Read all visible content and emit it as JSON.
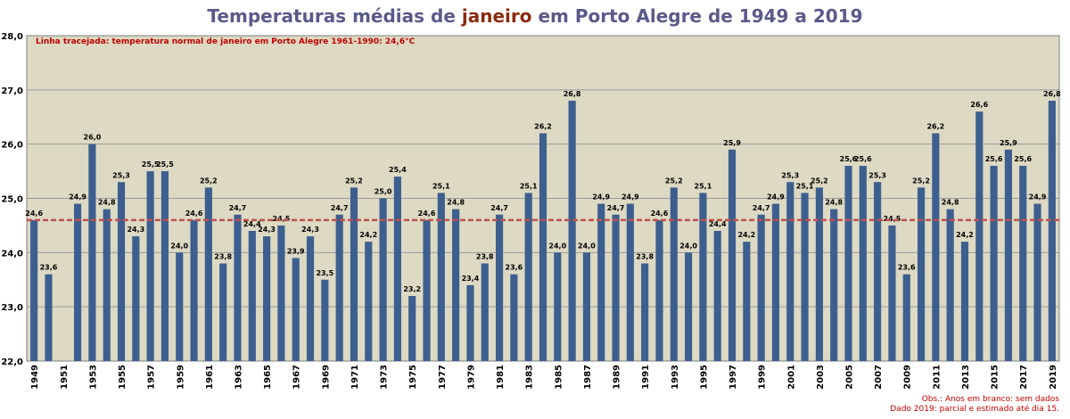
{
  "title": {
    "part1": "Temperaturas médias de ",
    "highlight": "janeiro",
    "part2": " em Porto Alegre de 1949 a 2019"
  },
  "note": "Linha tracejada: temperatura normal de janeiro em Porto Alegre 1961-1990: 24,6°C",
  "footnote": {
    "line1": "Obs.: Anos em branco: sem dados",
    "line2": "Dado 2019: parcial e estimado até dia 15."
  },
  "colors": {
    "bar": "#3c5f8f",
    "plot_bg": "#ddd9c3",
    "grid": "#9a9a9a",
    "normal_line": "#c0504d",
    "title": "#5a5a8a",
    "title_highlight": "#8b2a0e",
    "note": "#c00000"
  },
  "chart_data": {
    "type": "bar",
    "title": "Temperaturas médias de janeiro em Porto Alegre de 1949 a 2019",
    "xlabel": "",
    "ylabel": "",
    "ylim": [
      22.0,
      28.0
    ],
    "y_ticks": [
      "22,0",
      "23,0",
      "24,0",
      "25,0",
      "26,0",
      "27,0",
      "28,0"
    ],
    "grid": true,
    "reference_line": {
      "value": 24.6,
      "style": "dashed"
    },
    "categories": [
      "1949",
      "1950",
      "1951",
      "1952",
      "1953",
      "1954",
      "1955",
      "1956",
      "1957",
      "1958",
      "1959",
      "1960",
      "1961",
      "1962",
      "1963",
      "1964",
      "1965",
      "1966",
      "1967",
      "1968",
      "1969",
      "1970",
      "1971",
      "1972",
      "1973",
      "1974",
      "1975",
      "1976",
      "1977",
      "1978",
      "1979",
      "1980",
      "1981",
      "1982",
      "1983",
      "1984",
      "1985",
      "1986",
      "1987",
      "1988",
      "1989",
      "1990",
      "1991",
      "1992",
      "1993",
      "1994",
      "1995",
      "1996",
      "1997",
      "1998",
      "1999",
      "2000",
      "2001",
      "2002",
      "2003",
      "2004",
      "2005",
      "2006",
      "2007",
      "2008",
      "2009",
      "2010",
      "2011",
      "2012",
      "2013",
      "2014",
      "2015",
      "2016",
      "2017",
      "2018",
      "2019"
    ],
    "x_tick_labels": [
      "1949",
      "1951",
      "1953",
      "1955",
      "1957",
      "1959",
      "1961",
      "1963",
      "1965",
      "1967",
      "1969",
      "1971",
      "1973",
      "1975",
      "1977",
      "1979",
      "1981",
      "1983",
      "1985",
      "1987",
      "1989",
      "1991",
      "1993",
      "1995",
      "1997",
      "1999",
      "2001",
      "2003",
      "2005",
      "2007",
      "2009",
      "2011",
      "2013",
      "2015",
      "2017",
      "2019"
    ],
    "values": [
      24.6,
      23.6,
      null,
      24.9,
      26.0,
      24.8,
      25.3,
      24.3,
      25.5,
      25.5,
      24.0,
      24.6,
      25.2,
      23.8,
      24.7,
      24.4,
      24.3,
      24.5,
      23.9,
      24.3,
      23.5,
      24.7,
      25.2,
      24.2,
      25.0,
      25.4,
      23.2,
      24.6,
      25.1,
      24.8,
      23.4,
      23.8,
      24.7,
      23.6,
      25.1,
      26.2,
      24.0,
      26.8,
      24.0,
      24.9,
      24.7,
      24.9,
      23.8,
      24.6,
      25.2,
      24.0,
      25.1,
      24.4,
      25.9,
      24.2,
      24.7,
      24.9,
      25.3,
      25.1,
      25.2,
      24.8,
      25.6,
      25.6,
      25.3,
      24.5,
      23.6,
      25.2,
      26.2,
      24.8,
      24.2,
      26.6,
      25.6,
      25.9,
      25.6,
      24.9,
      26.8
    ],
    "data_labels": [
      "24,6",
      "23,6",
      "",
      "24,9",
      "26,0",
      "24,8",
      "25,3",
      "24,3",
      "25,5",
      "25,5",
      "24,0",
      "24,6",
      "25,2",
      "23,8",
      "24,7",
      "24,4",
      "24,3",
      "24,5",
      "23,9",
      "24,3",
      "23,5",
      "24,7",
      "25,2",
      "24,2",
      "25,0",
      "25,4",
      "23,2",
      "24,6",
      "25,1",
      "24,8",
      "23,4",
      "23,8",
      "24,7",
      "23,6",
      "25,1",
      "26,2",
      "24,0",
      "26,8",
      "24,0",
      "24,9",
      "24,7",
      "24,9",
      "23,8",
      "24,6",
      "25,2",
      "24,0",
      "25,1",
      "24,4",
      "25,9",
      "24,2",
      "24,7",
      "24,9",
      "25,3",
      "25,1",
      "25,2",
      "24,8",
      "25,6",
      "25,6",
      "25,3",
      "24,5",
      "23,6",
      "25,2",
      "26,2",
      "24,8",
      "24,2",
      "26,6",
      "25,6",
      "25,9",
      "25,6",
      "24,9",
      "26,8"
    ]
  }
}
